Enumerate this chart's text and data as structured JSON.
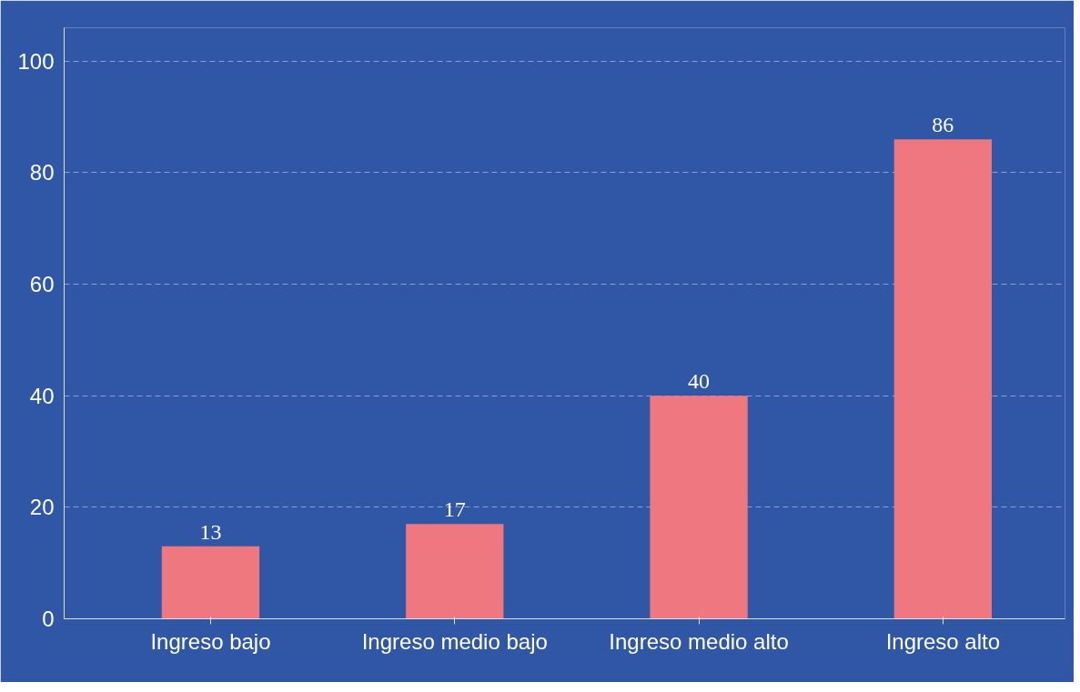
{
  "chart_data": {
    "type": "bar",
    "categories": [
      "Ingreso bajo",
      "Ingreso medio bajo",
      "Ingreso medio alto",
      "Ingreso alto"
    ],
    "values": [
      13,
      17,
      40,
      86
    ],
    "color": "#ee7780",
    "ylim": [
      0,
      106
    ],
    "yticks": [
      0,
      20,
      40,
      60,
      80,
      100
    ],
    "grid": "y",
    "data_labels": true
  }
}
